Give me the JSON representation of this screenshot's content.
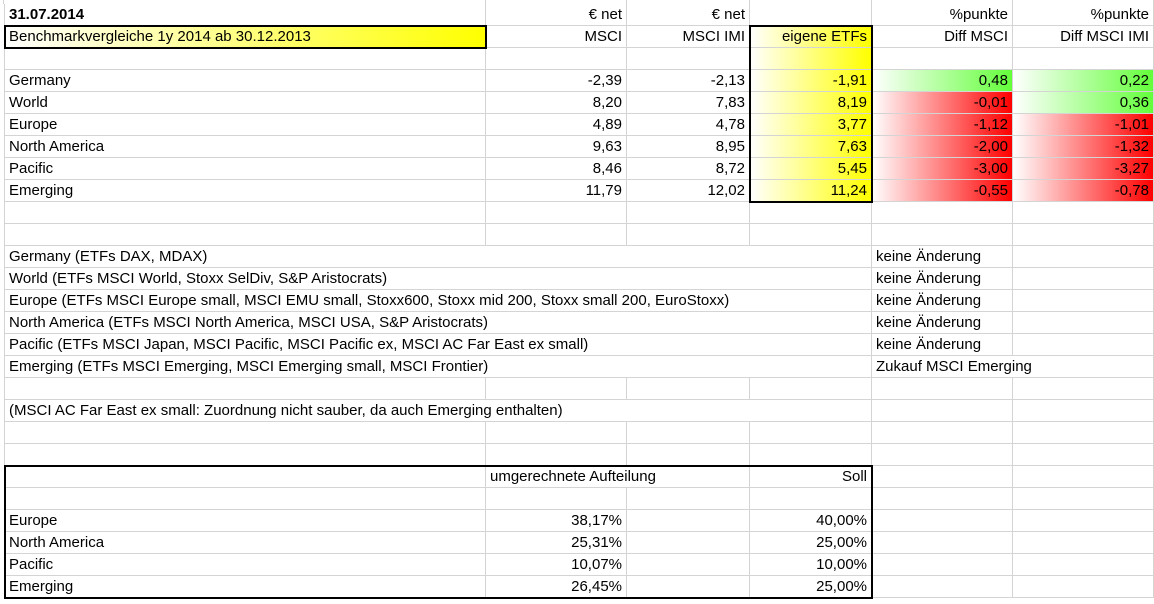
{
  "header": {
    "date": "31.07.2014",
    "title": "Benchmarkvergleiche 1y 2014 ab 30.12.2013",
    "col_msci_top": "€ net",
    "col_msci": "MSCI",
    "col_imi_top": "€ net",
    "col_imi": "MSCI IMI",
    "col_etf": "eigene ETFs",
    "col_diff_msci_top": "%punkte",
    "col_diff_msci": "Diff MSCI",
    "col_diff_imi_top": "%punkte",
    "col_diff_imi": "Diff MSCI IMI"
  },
  "benchmark_rows": [
    {
      "region": "Germany",
      "msci": "-2,39",
      "msci_imi": "-2,13",
      "etf": "-1,91",
      "diff_msci": "0,48",
      "diff_imi": "0,22"
    },
    {
      "region": "World",
      "msci": "8,20",
      "msci_imi": "7,83",
      "etf": "8,19",
      "diff_msci": "-0,01",
      "diff_imi": "0,36"
    },
    {
      "region": "Europe",
      "msci": "4,89",
      "msci_imi": "4,78",
      "etf": "3,77",
      "diff_msci": "-1,12",
      "diff_imi": "-1,01"
    },
    {
      "region": "North America",
      "msci": "9,63",
      "msci_imi": "8,95",
      "etf": "7,63",
      "diff_msci": "-2,00",
      "diff_imi": "-1,32"
    },
    {
      "region": "Pacific",
      "msci": "8,46",
      "msci_imi": "8,72",
      "etf": "5,45",
      "diff_msci": "-3,00",
      "diff_imi": "-3,27"
    },
    {
      "region": "Emerging",
      "msci": "11,79",
      "msci_imi": "12,02",
      "etf": "11,24",
      "diff_msci": "-0,55",
      "diff_imi": "-0,78"
    }
  ],
  "etf_notes": [
    {
      "text": "Germany (ETFs DAX, MDAX)",
      "action": "keine Änderung"
    },
    {
      "text": "World (ETFs MSCI World, Stoxx SelDiv, S&P Aristocrats)",
      "action": "keine Änderung"
    },
    {
      "text": "Europe (ETFs MSCI Europe small, MSCI EMU small, Stoxx600, Stoxx mid 200, Stoxx small 200, EuroStoxx)",
      "action": "keine Änderung"
    },
    {
      "text": "North America (ETFs MSCI North America, MSCI USA, S&P Aristocrats)",
      "action": "keine Änderung"
    },
    {
      "text": "Pacific (ETFs MSCI Japan, MSCI Pacific, MSCI Pacific ex, MSCI AC  Far East ex small)",
      "action": "keine Änderung"
    },
    {
      "text": "Emerging (ETFs MSCI Emerging, MSCI Emerging small, MSCI Frontier)",
      "action": "Zukauf MSCI Emerging"
    }
  ],
  "footnote": "(MSCI AC Far East ex small: Zuordnung nicht sauber, da auch Emerging enthalten)",
  "allocation": {
    "col_converted": "umgerechnete Aufteilung",
    "col_target": "Soll",
    "rows": [
      {
        "region": "Europe",
        "converted": "38,17%",
        "target": "40,00%"
      },
      {
        "region": "North America",
        "converted": "25,31%",
        "target": "25,00%"
      },
      {
        "region": "Pacific",
        "converted": "10,07%",
        "target": "10,00%"
      },
      {
        "region": "Emerging",
        "converted": "26,45%",
        "target": "25,00%"
      }
    ]
  },
  "colors": {
    "positive": "#63ff3a",
    "negative": "#ff0000",
    "highlight": "#ffff00",
    "grid": "#d4d4d4"
  }
}
